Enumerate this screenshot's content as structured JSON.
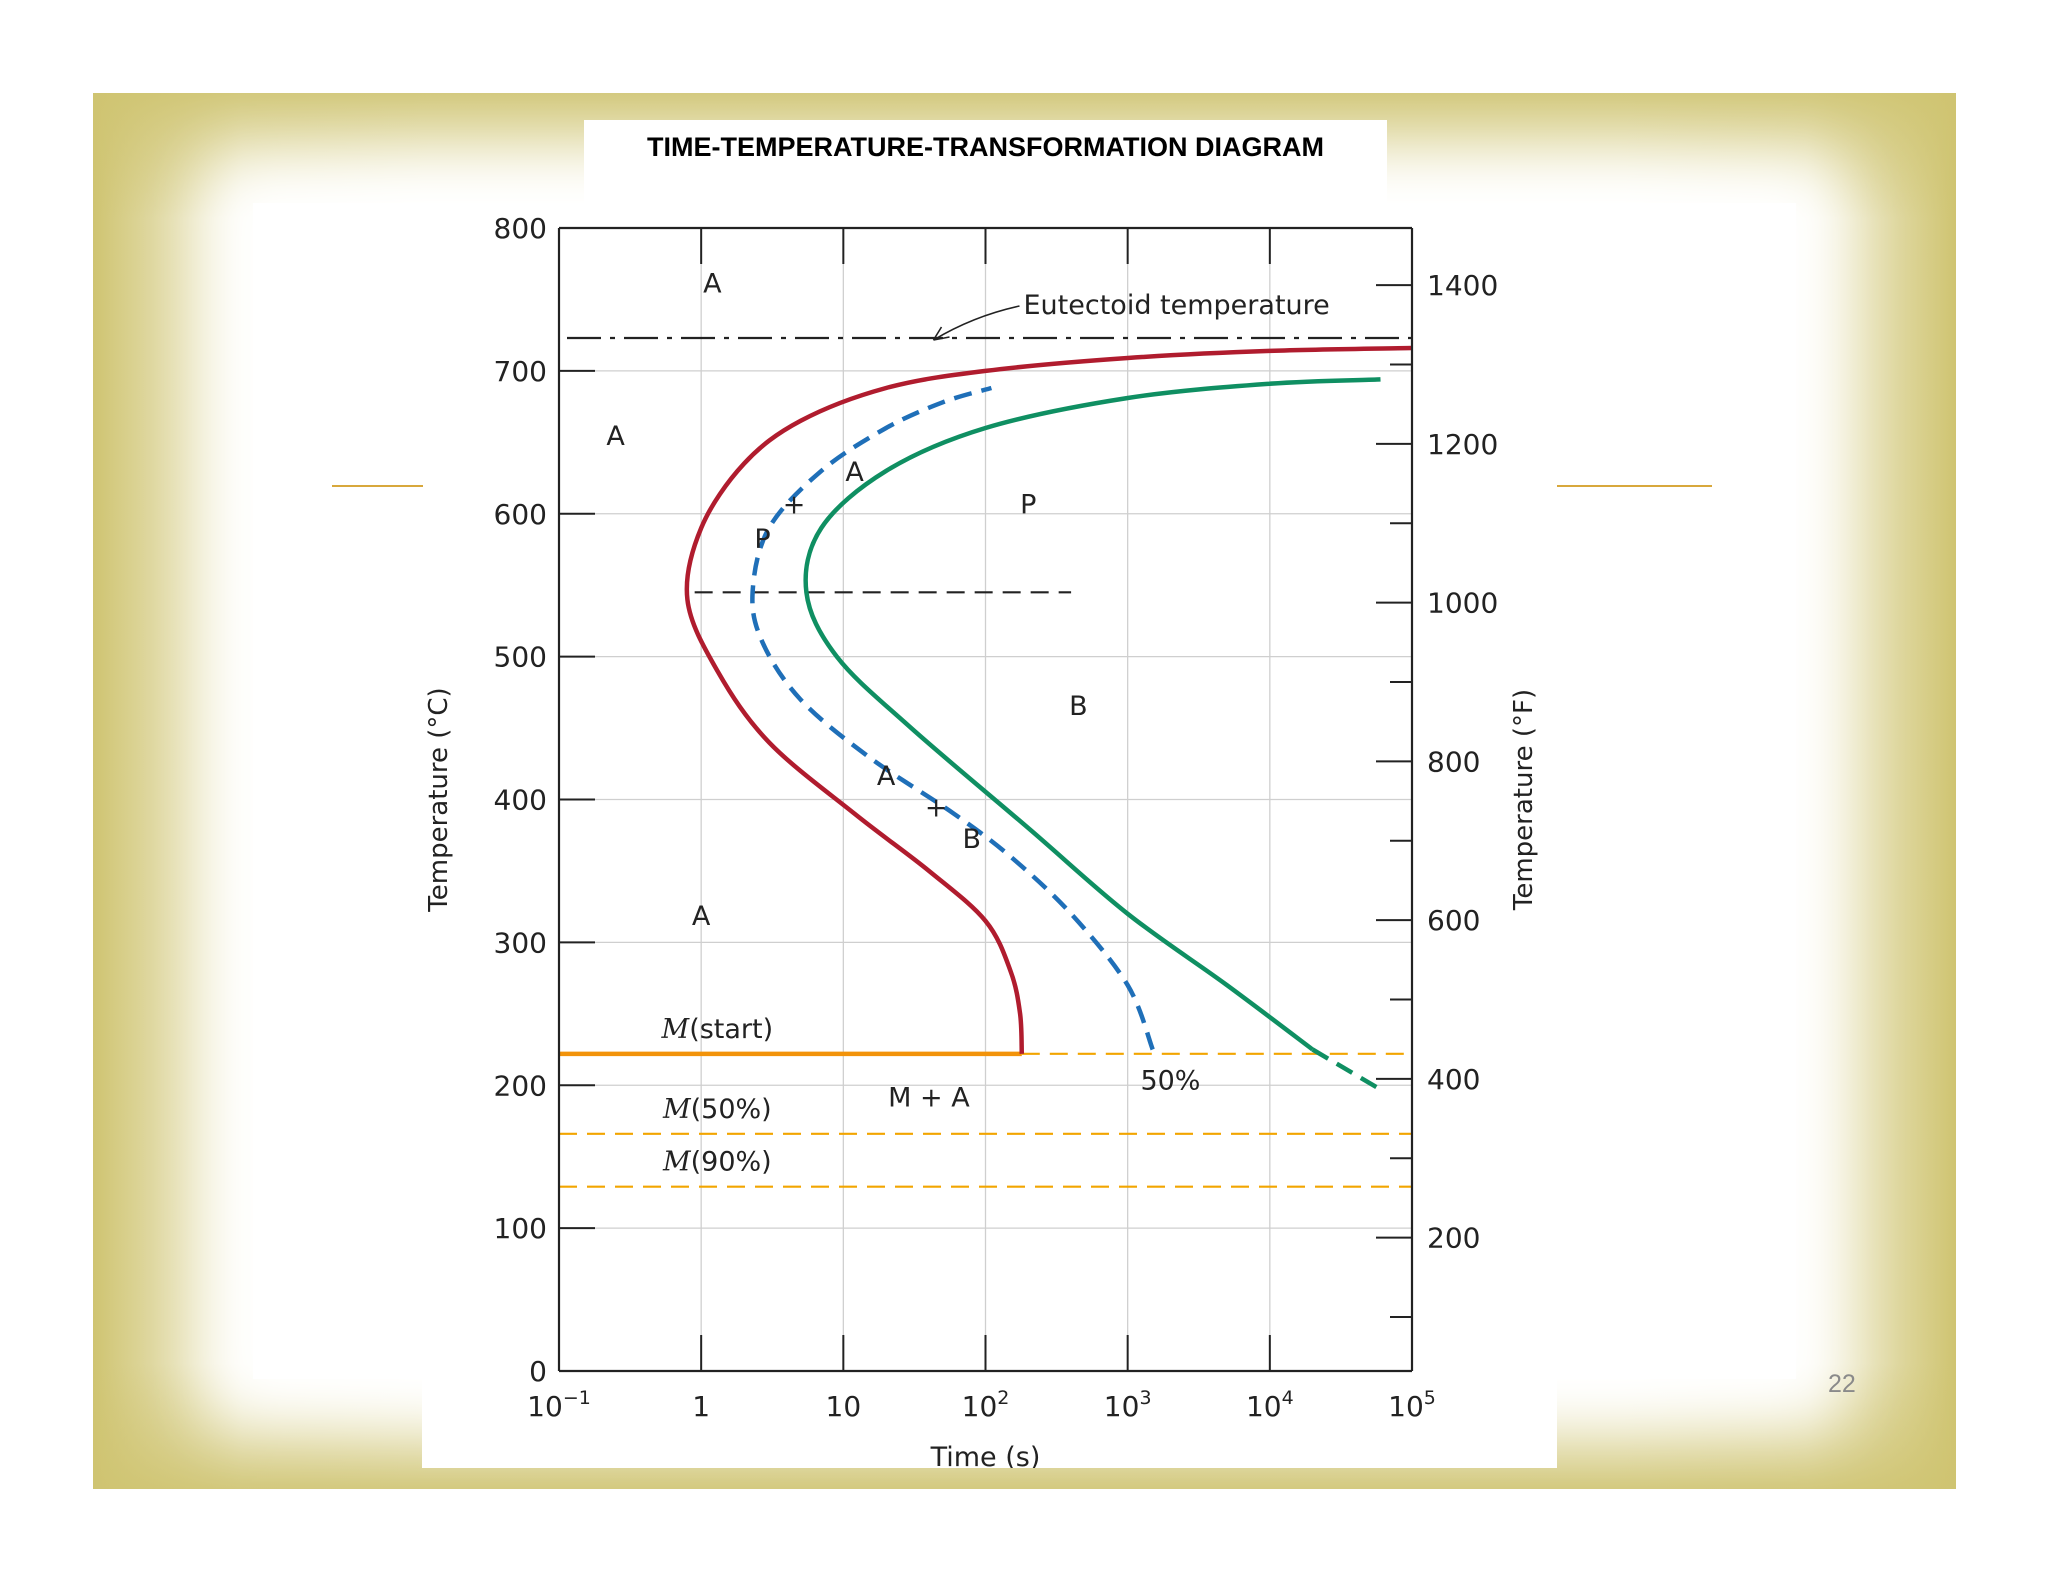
{
  "slide": {
    "title": "TIME-TEMPERATURE-TRANSFORMATION DIAGRAM",
    "page_number": "22",
    "frame_color": "#cfc471",
    "accent_color": "#d8a83c"
  },
  "chart_data": {
    "type": "line",
    "xlabel": "Time (s)",
    "ylabel": "Temperature (°C)",
    "y2label": "Temperature (°F)",
    "x_scale": "log",
    "xlim": [
      0.1,
      100000
    ],
    "ylim": [
      0,
      800
    ],
    "y2lim": [
      32,
      1472
    ],
    "grid": true,
    "x_ticks": [
      {
        "value": 0.1,
        "base": "10",
        "exp": "−1"
      },
      {
        "value": 1,
        "base": "1",
        "exp": ""
      },
      {
        "value": 10,
        "base": "10",
        "exp": ""
      },
      {
        "value": 100,
        "base": "10",
        "exp": "2"
      },
      {
        "value": 1000,
        "base": "10",
        "exp": "3"
      },
      {
        "value": 10000,
        "base": "10",
        "exp": "4"
      },
      {
        "value": 100000,
        "base": "10",
        "exp": "5"
      }
    ],
    "y_ticks": [
      "0",
      "100",
      "200",
      "300",
      "400",
      "500",
      "600",
      "700",
      "800"
    ],
    "y2_ticks": [
      "200",
      "400",
      "600",
      "800",
      "1000",
      "1200",
      "1400"
    ],
    "series": [
      {
        "key": "start",
        "color": "#b01c2e",
        "style": "solid",
        "points": [
          [
            180,
            222
          ],
          [
            175,
            250
          ],
          [
            150,
            280
          ],
          [
            100,
            315
          ],
          [
            40,
            350
          ],
          [
            12,
            390
          ],
          [
            3,
            440
          ],
          [
            1.3,
            490
          ],
          [
            0.8,
            540
          ],
          [
            1.0,
            590
          ],
          [
            2.0,
            635
          ],
          [
            5,
            665
          ],
          [
            20,
            688
          ],
          [
            100,
            700
          ],
          [
            1000,
            709
          ],
          [
            10000,
            714
          ],
          [
            100000,
            716
          ]
        ]
      },
      {
        "key": "fifty",
        "color": "#1f6fb8",
        "style": "dashed",
        "points": [
          [
            1500,
            225
          ],
          [
            1000,
            270
          ],
          [
            400,
            320
          ],
          [
            150,
            360
          ],
          [
            60,
            390
          ],
          [
            15,
            430
          ],
          [
            5,
            470
          ],
          [
            2.7,
            510
          ],
          [
            2.3,
            545
          ],
          [
            3.0,
            590
          ],
          [
            7,
            630
          ],
          [
            20,
            660
          ],
          [
            50,
            678
          ],
          [
            110,
            688
          ]
        ]
      },
      {
        "key": "completion",
        "color": "#0f8f62",
        "style": "solid",
        "points": [
          [
            20000,
            225
          ],
          [
            5000,
            270
          ],
          [
            1000,
            320
          ],
          [
            200,
            380
          ],
          [
            30,
            450
          ],
          [
            9,
            500
          ],
          [
            5.5,
            545
          ],
          [
            7,
            590
          ],
          [
            20,
            630
          ],
          [
            100,
            660
          ],
          [
            1000,
            681
          ],
          [
            10000,
            691
          ],
          [
            60000,
            694
          ]
        ]
      },
      {
        "key": "completion-extrapolated",
        "color": "#0f8f62",
        "style": "dashed",
        "points": [
          [
            20000,
            225
          ],
          [
            60000,
            197
          ]
        ]
      }
    ],
    "reference_lines": [
      {
        "key": "eutectoid",
        "temperature": 723,
        "xrange": [
          0.1,
          100000
        ],
        "style": "dash-dot",
        "color": "#222222",
        "label": "Eutectoid temperature"
      },
      {
        "key": "isothermal",
        "temperature": 545,
        "xrange": [
          0.9,
          400
        ],
        "style": "dashed",
        "color": "#222222",
        "label": ""
      },
      {
        "key": "m-start-solid",
        "temperature": 222,
        "xrange": [
          0.1,
          180
        ],
        "style": "solid",
        "color": "#f2930a",
        "label": "M(start)"
      },
      {
        "key": "m-start-dashed",
        "temperature": 222,
        "xrange": [
          180,
          100000
        ],
        "style": "dashed",
        "color": "#f2a500",
        "label": ""
      },
      {
        "key": "m-50",
        "temperature": 166,
        "xrange": [
          0.1,
          100000
        ],
        "style": "dashed",
        "color": "#f2a500",
        "label": "M(50%)"
      },
      {
        "key": "m-90",
        "temperature": 129,
        "xrange": [
          0.1,
          100000
        ],
        "style": "dashed",
        "color": "#f2a500",
        "label": "M(90%)"
      }
    ],
    "annotations": [
      {
        "key": "a-top",
        "text": "A",
        "x": 1.2,
        "y": 762
      },
      {
        "key": "a-left",
        "text": "A",
        "x": 0.25,
        "y": 655
      },
      {
        "key": "a-pearlite-region",
        "text": "A",
        "x": 12,
        "y": 630
      },
      {
        "key": "plus-pearlite",
        "text": "+",
        "x": 4.5,
        "y": 607
      },
      {
        "key": "p-small",
        "text": "P",
        "x": 2.7,
        "y": 583
      },
      {
        "key": "p-large",
        "text": "P",
        "x": 200,
        "y": 607
      },
      {
        "key": "b-region",
        "text": "B",
        "x": 450,
        "y": 466
      },
      {
        "key": "a-bainite-region",
        "text": "A",
        "x": 20,
        "y": 417
      },
      {
        "key": "plus-bainite",
        "text": "+",
        "x": 45,
        "y": 395
      },
      {
        "key": "b-small",
        "text": "B",
        "x": 80,
        "y": 373
      },
      {
        "key": "a-lower",
        "text": "A",
        "x": 1.0,
        "y": 319
      },
      {
        "key": "m-plus-a",
        "text": "M + A",
        "x": 40,
        "y": 192
      },
      {
        "key": "fifty-percent",
        "text": "50%",
        "x": 2000,
        "y": 204
      }
    ]
  }
}
